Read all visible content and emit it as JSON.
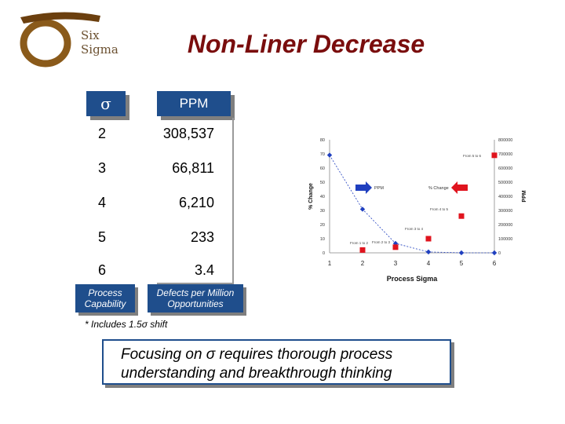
{
  "slide": {
    "title": "Non-Liner Decrease",
    "logo_text": [
      "Six",
      "Sigma"
    ],
    "table": {
      "sigma_header": "σ",
      "ppm_header": "PPM",
      "rows": [
        {
          "sigma": "2",
          "ppm": "308,537"
        },
        {
          "sigma": "3",
          "ppm": "66,811"
        },
        {
          "sigma": "4",
          "ppm": "6,210"
        },
        {
          "sigma": "5",
          "ppm": "233"
        },
        {
          "sigma": "6",
          "ppm": "3.4"
        }
      ],
      "footer_left": "Process Capability",
      "footer_right": "Defects per Million Opportunities"
    },
    "note": "* Includes 1.5σ shift",
    "banner": "Focusing on σ requires thorough process understanding and breakthrough thinking"
  },
  "chart_data": {
    "type": "line",
    "xlabel": "Process Sigma",
    "ylabel_left": "% Change",
    "ylabel_right": "PPM",
    "x": [
      1,
      2,
      3,
      4,
      5,
      6
    ],
    "ylim_left": [
      0,
      80
    ],
    "ylim_right": [
      0,
      800000
    ],
    "left_ticks": [
      "0",
      "10",
      "20",
      "30",
      "40",
      "50",
      "60",
      "70",
      "80"
    ],
    "right_ticks": [
      "0",
      "100000",
      "200000",
      "300000",
      "400000",
      "500000",
      "600000",
      "700000",
      "800000"
    ],
    "series": [
      {
        "name": "PPM",
        "axis": "right",
        "marker": "diamond",
        "color": "#1f3fbf",
        "values": [
          691462,
          308537,
          66811,
          6210,
          233,
          3.4
        ]
      },
      {
        "name": "% Change",
        "axis": "left",
        "marker": "square",
        "color": "#e0141e",
        "points": [
          [
            2,
            2
          ],
          [
            3,
            4
          ],
          [
            4,
            10
          ],
          [
            5,
            26
          ],
          [
            6,
            69
          ]
        ]
      }
    ],
    "legend": {
      "ppm_label": "PPM",
      "change_label": "% Change"
    },
    "annotations": [
      "From 5 to 6",
      "From 4 to 5",
      "From 3 to 4",
      "From 2 to 3",
      "From 1 to 2"
    ],
    "colors": {
      "ppm_arrow": "#1f3fbf",
      "change_arrow": "#e0141e"
    }
  }
}
